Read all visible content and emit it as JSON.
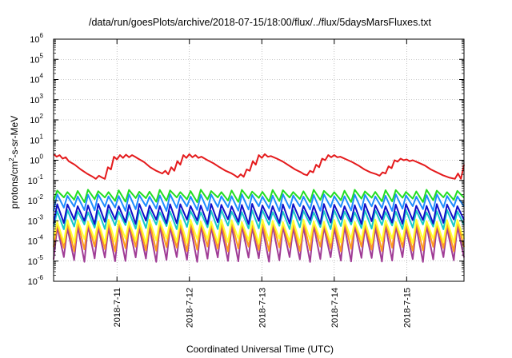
{
  "chart_data": {
    "type": "line",
    "title": "/data/run/goesPlots/archive/2018-07-15/18:00/flux/../flux/5daysMarsFluxes.txt",
    "xlabel": "Coordinated Universal Time (UTC)",
    "ylabel_parts": {
      "pre": "protons/cm",
      "sup": "2",
      "post": "-s-sr-MeV"
    },
    "yscale": "log",
    "ylim": [
      1e-06,
      1000000.0
    ],
    "xlim": [
      "2018-07-10T03:00",
      "2018-07-15T19:00"
    ],
    "x_ticks": [
      {
        "value": "2018-07-11T00:00",
        "label": "2018-7-11"
      },
      {
        "value": "2018-07-12T00:00",
        "label": "2018-7-12"
      },
      {
        "value": "2018-07-13T00:00",
        "label": "2018-7-13"
      },
      {
        "value": "2018-07-14T00:00",
        "label": "2018-7-14"
      },
      {
        "value": "2018-07-15T00:00",
        "label": "2018-7-15"
      }
    ],
    "y_ticks": [
      {
        "base": "10",
        "exp": "-6"
      },
      {
        "base": "10",
        "exp": "-5"
      },
      {
        "base": "10",
        "exp": "-4"
      },
      {
        "base": "10",
        "exp": "-3"
      },
      {
        "base": "10",
        "exp": "-2"
      },
      {
        "base": "10",
        "exp": "-1"
      },
      {
        "base": "10",
        "exp": "0"
      },
      {
        "base": "10",
        "exp": "1"
      },
      {
        "base": "10",
        "exp": "2"
      },
      {
        "base": "10",
        "exp": "3"
      },
      {
        "base": "10",
        "exp": "4"
      },
      {
        "base": "10",
        "exp": "5"
      },
      {
        "base": "10",
        "exp": "6"
      }
    ],
    "grid": true,
    "grid_style": "dotted",
    "series": [
      {
        "color": "#e41a1c",
        "pattern": "sawtooth",
        "x": [
          "2018-07-10T03:00",
          "2018-07-10T04:00",
          "2018-07-10T05:00",
          "2018-07-10T06:00",
          "2018-07-10T07:00",
          "2018-07-10T08:00",
          "2018-07-10T10:00",
          "2018-07-10T12:00",
          "2018-07-10T14:00",
          "2018-07-10T15:00",
          "2018-07-10T16:00",
          "2018-07-10T17:00",
          "2018-07-10T18:00",
          "2018-07-10T19:00",
          "2018-07-10T20:00",
          "2018-07-10T21:00",
          "2018-07-10T22:00",
          "2018-07-10T23:00",
          "2018-07-11T00:00",
          "2018-07-11T01:00",
          "2018-07-11T02:00",
          "2018-07-11T03:00",
          "2018-07-11T04:00",
          "2018-07-11T05:00",
          "2018-07-11T06:00",
          "2018-07-11T07:00",
          "2018-07-11T09:00",
          "2018-07-11T11:00",
          "2018-07-11T13:00",
          "2018-07-11T15:00",
          "2018-07-11T16:00",
          "2018-07-11T17:00",
          "2018-07-11T18:00",
          "2018-07-11T19:00",
          "2018-07-11T20:00",
          "2018-07-11T21:00",
          "2018-07-11T22:00",
          "2018-07-11T23:00",
          "2018-07-12T00:00",
          "2018-07-12T01:00",
          "2018-07-12T02:00",
          "2018-07-12T03:00",
          "2018-07-12T04:00",
          "2018-07-12T06:00",
          "2018-07-12T08:00",
          "2018-07-12T10:00",
          "2018-07-12T12:00",
          "2018-07-12T14:00",
          "2018-07-12T15:00",
          "2018-07-12T16:00",
          "2018-07-12T17:00",
          "2018-07-12T18:00",
          "2018-07-12T19:00",
          "2018-07-12T20:00",
          "2018-07-12T21:00",
          "2018-07-12T22:00",
          "2018-07-12T23:00",
          "2018-07-13T00:00",
          "2018-07-13T01:00",
          "2018-07-13T02:00",
          "2018-07-13T03:00",
          "2018-07-13T05:00",
          "2018-07-13T07:00",
          "2018-07-13T09:00",
          "2018-07-13T11:00",
          "2018-07-13T13:00",
          "2018-07-13T14:00",
          "2018-07-13T15:00",
          "2018-07-13T16:00",
          "2018-07-13T17:00",
          "2018-07-13T18:00",
          "2018-07-13T19:00",
          "2018-07-13T20:00",
          "2018-07-13T21:00",
          "2018-07-13T22:00",
          "2018-07-13T23:00",
          "2018-07-14T00:00",
          "2018-07-14T01:00",
          "2018-07-14T02:00",
          "2018-07-14T04:00",
          "2018-07-14T06:00",
          "2018-07-14T08:00",
          "2018-07-14T10:00",
          "2018-07-14T12:00",
          "2018-07-14T14:00",
          "2018-07-14T15:00",
          "2018-07-14T16:00",
          "2018-07-14T17:00",
          "2018-07-14T18:00",
          "2018-07-14T19:00",
          "2018-07-14T20:00",
          "2018-07-14T21:00",
          "2018-07-14T22:00",
          "2018-07-14T23:00",
          "2018-07-15T00:00",
          "2018-07-15T01:00",
          "2018-07-15T02:00",
          "2018-07-15T04:00",
          "2018-07-15T06:00",
          "2018-07-15T08:00",
          "2018-07-15T10:00",
          "2018-07-15T12:00",
          "2018-07-15T14:00",
          "2018-07-15T16:00",
          "2018-07-15T17:00",
          "2018-07-15T18:00",
          "2018-07-15T19:00"
        ],
        "values": [
          2.0,
          1.5,
          1.8,
          1.2,
          1.4,
          0.9,
          0.6,
          0.35,
          0.22,
          0.18,
          0.15,
          0.12,
          0.17,
          0.14,
          0.12,
          0.45,
          0.35,
          1.5,
          1.1,
          1.8,
          1.3,
          1.9,
          1.4,
          1.8,
          1.5,
          1.2,
          0.8,
          0.45,
          0.3,
          0.22,
          0.3,
          0.2,
          0.45,
          0.3,
          0.9,
          0.6,
          1.8,
          1.3,
          2.0,
          1.4,
          1.8,
          1.3,
          1.5,
          1.0,
          0.7,
          0.45,
          0.3,
          0.22,
          0.18,
          0.14,
          0.2,
          0.15,
          0.35,
          0.3,
          0.9,
          0.6,
          1.8,
          1.3,
          2.0,
          1.5,
          1.6,
          1.2,
          0.85,
          0.55,
          0.35,
          0.25,
          0.2,
          0.18,
          0.3,
          0.25,
          0.6,
          0.45,
          1.2,
          1.0,
          1.8,
          1.4,
          1.8,
          1.4,
          1.5,
          1.1,
          0.8,
          0.55,
          0.35,
          0.25,
          0.2,
          0.17,
          0.25,
          0.22,
          0.5,
          0.4,
          1.0,
          0.85,
          1.2,
          1.0,
          1.1,
          0.9,
          1.0,
          0.75,
          0.55,
          0.35,
          0.25,
          0.18,
          0.14,
          0.12,
          0.22,
          0.12,
          0.6
        ]
      },
      {
        "color": "#22dd22",
        "pattern": "zigzag",
        "peaks": 40,
        "low": 0.011,
        "high": 0.03
      },
      {
        "color": "#1e8cff",
        "pattern": "zigzag",
        "peaks": 40,
        "low": 0.004,
        "high": 0.018
      },
      {
        "color": "#1010c8",
        "pattern": "zigzag",
        "peaks": 40,
        "low": 0.0009,
        "high": 0.006
      },
      {
        "color": "#18c8c8",
        "pattern": "zigzag",
        "peaks": 40,
        "low": 0.0005,
        "high": 0.003
      },
      {
        "color": "#ffff33",
        "pattern": "zigzag",
        "peaks": 40,
        "low": 0.0001,
        "high": 0.001
      },
      {
        "color": "#ff9b1e",
        "pattern": "zigzag",
        "peaks": 40,
        "low": 4e-05,
        "high": 0.0008
      },
      {
        "color": "#a03c96",
        "pattern": "zigzag",
        "peaks": 40,
        "low": 1.2e-05,
        "high": 0.0005
      }
    ]
  }
}
